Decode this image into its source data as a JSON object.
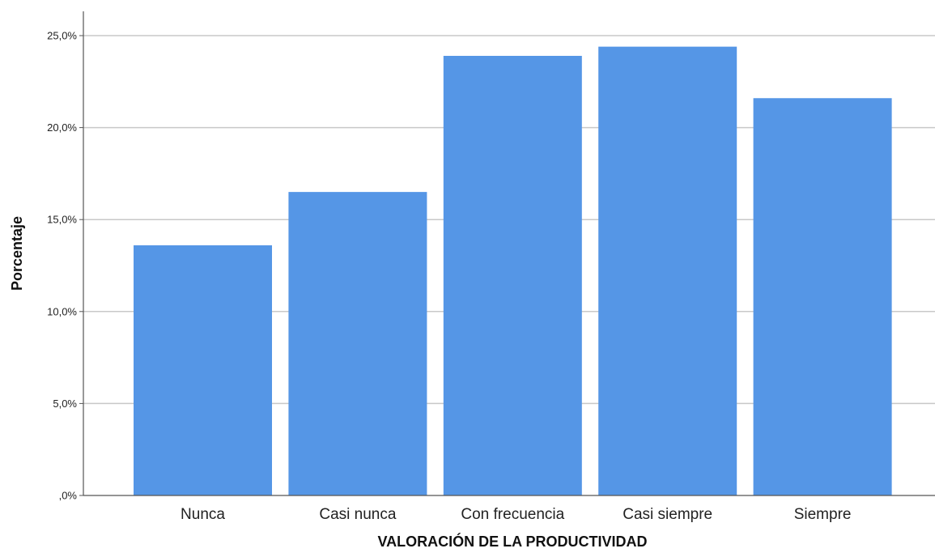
{
  "chart_data": {
    "type": "bar",
    "categories": [
      "Nunca",
      "Casi nunca",
      "Con frecuencia",
      "Casi siempre",
      "Siempre"
    ],
    "values": [
      13.6,
      16.5,
      23.9,
      24.4,
      21.6
    ],
    "xlabel": "VALORACIÓN DE LA PRODUCTIVIDAD",
    "ylabel": "Porcentaje",
    "ylim": [
      0,
      26
    ],
    "yticks": [
      0,
      5,
      10,
      15,
      20,
      25
    ],
    "ytick_labels": [
      ",0%",
      "5,0%",
      "10,0%",
      "15,0%",
      "20,0%",
      "25,0%"
    ],
    "grid": true,
    "bar_color": "#5596e6",
    "grid_color": "#c8c8c8",
    "axis_color": "#555555"
  }
}
